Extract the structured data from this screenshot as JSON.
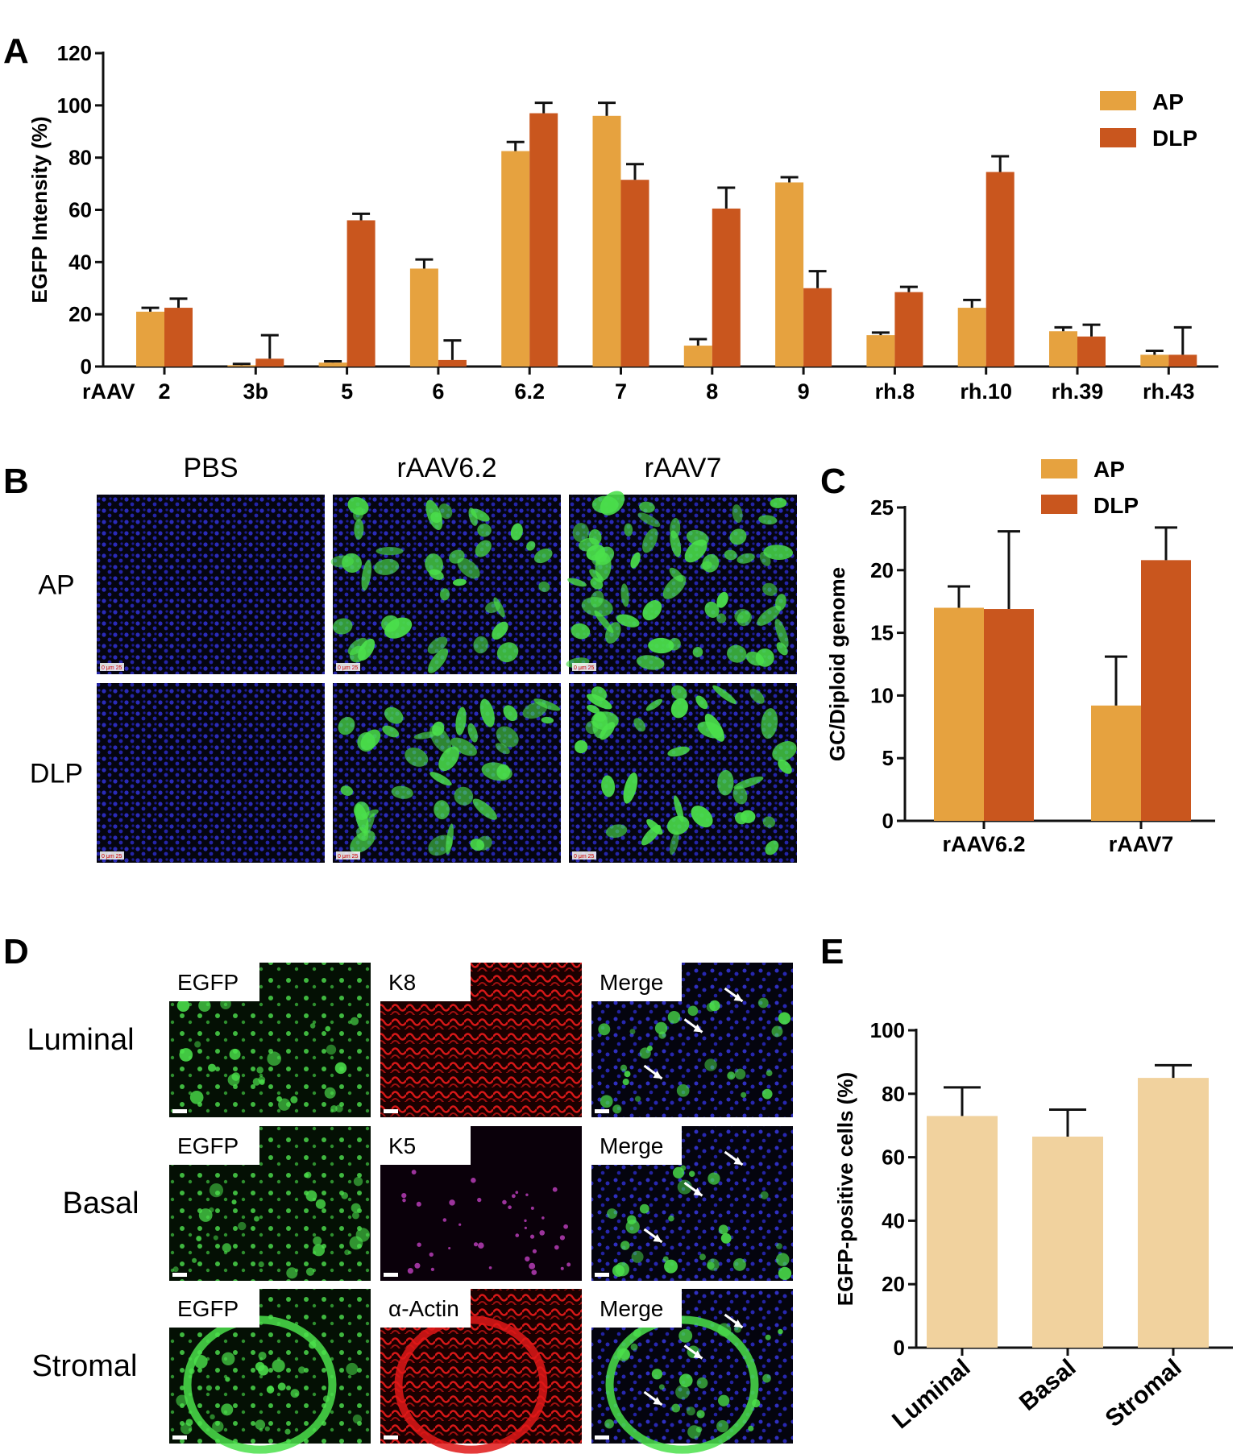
{
  "colors": {
    "ap": "#E6A23F",
    "dlp": "#C9561E",
    "panel_e_bar": "#F1D29E",
    "green": "#4BE04B",
    "red": "#E01818",
    "blue": "#3030C8",
    "magenta": "#C040C0"
  },
  "panel_labels": {
    "a": "A",
    "b": "B",
    "c": "C",
    "d": "D",
    "e": "E"
  },
  "panel_b": {
    "columns": [
      "PBS",
      "rAAV6.2",
      "rAAV7"
    ],
    "rows": [
      "AP",
      "DLP"
    ],
    "scale_text": "0  μm  25"
  },
  "panel_d": {
    "rows": [
      {
        "label": "Luminal",
        "stains": [
          "EGFP",
          "K8",
          "Merge"
        ]
      },
      {
        "label": "Basal",
        "stains": [
          "EGFP",
          "K5",
          "Merge"
        ]
      },
      {
        "label": "Stromal",
        "stains": [
          "EGFP",
          "α-Actin",
          "Merge"
        ]
      }
    ]
  },
  "chart_data": [
    {
      "id": "A",
      "type": "bar",
      "ylabel": "EGFP Intensity (%)",
      "x_prefix": "rAAV",
      "categories": [
        "2",
        "3b",
        "5",
        "6",
        "6.2",
        "7",
        "8",
        "9",
        "rh.8",
        "rh.10",
        "rh.39",
        "rh.43"
      ],
      "series": [
        {
          "name": "AP",
          "values": [
            21,
            0.5,
            1.5,
            37.5,
            82.5,
            96,
            8,
            70.5,
            12,
            22.5,
            13.5,
            4.5
          ],
          "errors": [
            1.5,
            0.5,
            0.5,
            3.5,
            3.5,
            5,
            2.5,
            2,
            1,
            3,
            1.5,
            1.5
          ]
        },
        {
          "name": "DLP",
          "values": [
            22.5,
            3,
            56,
            2.5,
            97,
            71.5,
            60.5,
            30,
            28.5,
            74.5,
            11.5,
            4.5
          ],
          "errors": [
            3.5,
            9,
            2.5,
            7.5,
            4,
            6,
            8,
            6.5,
            2,
            6,
            4.5,
            10.5
          ]
        }
      ],
      "ylim": [
        0,
        120
      ],
      "yticks": [
        0,
        20,
        40,
        60,
        80,
        100,
        120
      ],
      "legend": "top-right"
    },
    {
      "id": "C",
      "type": "bar",
      "ylabel": "GC/Diploid genome",
      "categories": [
        "rAAV6.2",
        "rAAV7"
      ],
      "series": [
        {
          "name": "AP",
          "values": [
            17,
            9.2
          ],
          "errors": [
            1.7,
            3.9
          ]
        },
        {
          "name": "DLP",
          "values": [
            16.9,
            20.8
          ],
          "errors": [
            6.2,
            2.6
          ]
        }
      ],
      "ylim": [
        0,
        25
      ],
      "yticks": [
        0,
        5,
        10,
        15,
        20,
        25
      ],
      "legend": "top"
    },
    {
      "id": "E",
      "type": "bar",
      "ylabel": "EGFP-positive cells (%)",
      "categories": [
        "Luminal",
        "Basal",
        "Stromal"
      ],
      "series": [
        {
          "name": "EGFP-positive",
          "values": [
            73,
            66.5,
            85
          ],
          "errors": [
            9,
            8.5,
            4
          ]
        }
      ],
      "ylim": [
        0,
        100
      ],
      "yticks": [
        0,
        20,
        40,
        60,
        80,
        100
      ]
    }
  ]
}
